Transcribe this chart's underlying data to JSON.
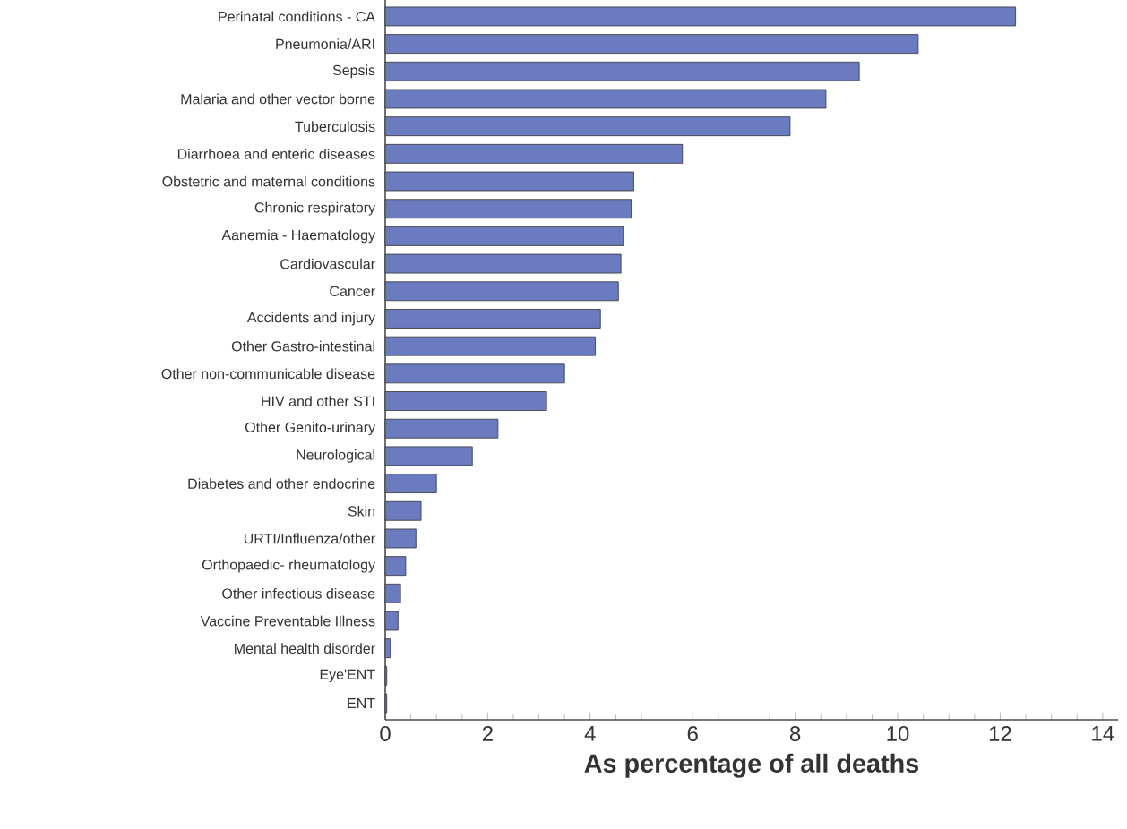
{
  "chart_data": {
    "type": "bar",
    "orientation": "horizontal",
    "xlabel": "As percentage of all deaths",
    "categories": [
      "Perinatal conditions - CA",
      "Pneumonia/ARI",
      "Sepsis",
      "Malaria and other vector borne",
      "Tuberculosis",
      "Diarrhoea and enteric diseases",
      "Obstetric and maternal conditions",
      "Chronic respiratory",
      "Aanemia - Haematology",
      "Cardiovascular",
      "Cancer",
      "Accidents and injury",
      "Other Gastro-intestinal",
      "Other non-communicable disease",
      "HIV and other STI",
      "Other Genito-urinary",
      "Neurological",
      "Diabetes and other endocrine",
      "Skin",
      "URTI/Influenza/other",
      "Orthopaedic- rheumatology",
      "Other infectious disease",
      "Vaccine Preventable Illness",
      "Mental health disorder",
      "Eye'ENT",
      "ENT"
    ],
    "values": [
      12.3,
      10.4,
      9.25,
      8.6,
      7.9,
      5.8,
      4.85,
      4.8,
      4.65,
      4.6,
      4.55,
      4.2,
      4.1,
      3.5,
      3.15,
      2.2,
      1.7,
      1.0,
      0.7,
      0.6,
      0.4,
      0.3,
      0.25,
      0.1,
      0.03,
      0.03
    ],
    "color": "#6b7bbf",
    "xlim": [
      0,
      14.3
    ],
    "xticks": [
      0,
      2,
      4,
      6,
      8,
      10,
      12,
      14
    ],
    "grid": false
  }
}
